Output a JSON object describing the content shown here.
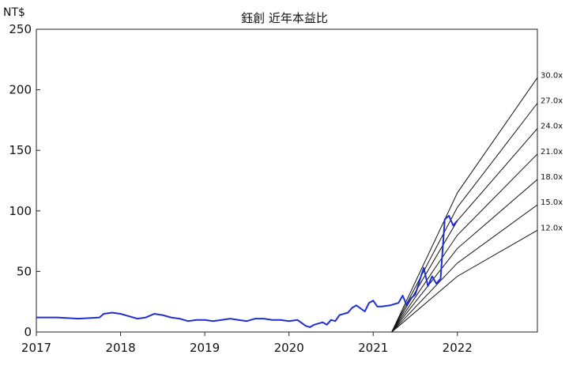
{
  "chart_data": {
    "type": "line",
    "title": "鈺創 近年本益比",
    "ylabel": "NT$",
    "xlabel": "",
    "xlim": [
      2017.0,
      2022.95
    ],
    "ylim": [
      0,
      250
    ],
    "x_ticks": [
      "2017",
      "2018",
      "2019",
      "2020",
      "2021",
      "2022"
    ],
    "y_ticks": [
      "0",
      "50",
      "100",
      "150",
      "200",
      "250"
    ],
    "grid": false,
    "legend": "none",
    "price_color": "#1f2fd0",
    "band_color": "#111111",
    "series": [
      {
        "name": "",
        "x": [
          2017.0,
          2017.25,
          2017.5,
          2017.75,
          2017.8,
          2017.9,
          2018.0,
          2018.1,
          2018.2,
          2018.3,
          2018.4,
          2018.5,
          2018.6,
          2018.7,
          2018.8,
          2018.9,
          2019.0,
          2019.1,
          2019.2,
          2019.3,
          2019.4,
          2019.5,
          2019.6,
          2019.7,
          2019.8,
          2019.9,
          2020.0,
          2020.1,
          2020.2,
          2020.25,
          2020.3,
          2020.4,
          2020.45,
          2020.5,
          2020.55,
          2020.6,
          2020.7,
          2020.75,
          2020.8,
          2020.9,
          2020.95,
          2021.0,
          2021.05,
          2021.1,
          2021.2,
          2021.3,
          2021.35,
          2021.4,
          2021.45,
          2021.5,
          2021.55,
          2021.6,
          2021.65,
          2021.7,
          2021.75,
          2021.8,
          2021.85,
          2021.9,
          2021.95,
          2022.0
        ],
        "y": [
          12,
          12,
          11,
          12,
          15,
          16,
          15,
          13,
          11,
          12,
          15,
          14,
          12,
          11,
          9,
          10,
          10,
          9,
          10,
          11,
          10,
          9,
          11,
          11,
          10,
          10,
          9,
          10,
          5,
          4,
          6,
          8,
          6,
          10,
          9,
          14,
          16,
          20,
          22,
          17,
          24,
          26,
          21,
          21,
          22,
          24,
          30,
          22,
          28,
          31,
          42,
          53,
          38,
          46,
          40,
          44,
          93,
          96,
          88,
          92
        ]
      }
    ],
    "pe_bands": [
      {
        "label": "30.0x",
        "x": [
          2021.22,
          2022.0,
          2022.95
        ],
        "y": [
          0,
          115,
          210
        ]
      },
      {
        "label": "27.0x",
        "x": [
          2021.22,
          2022.0,
          2022.95
        ],
        "y": [
          0,
          103,
          189
        ]
      },
      {
        "label": "24.0x",
        "x": [
          2021.22,
          2022.0,
          2022.95
        ],
        "y": [
          0,
          92,
          168
        ]
      },
      {
        "label": "21.0x",
        "x": [
          2021.22,
          2022.0,
          2022.95
        ],
        "y": [
          0,
          80,
          147
        ]
      },
      {
        "label": "18.0x",
        "x": [
          2021.22,
          2022.0,
          2022.95
        ],
        "y": [
          0,
          69,
          126
        ]
      },
      {
        "label": "15.0x",
        "x": [
          2021.22,
          2022.0,
          2022.95
        ],
        "y": [
          0,
          57,
          105
        ]
      },
      {
        "label": "12.0x",
        "x": [
          2021.22,
          2022.0,
          2022.95
        ],
        "y": [
          0,
          46,
          84
        ]
      }
    ]
  }
}
